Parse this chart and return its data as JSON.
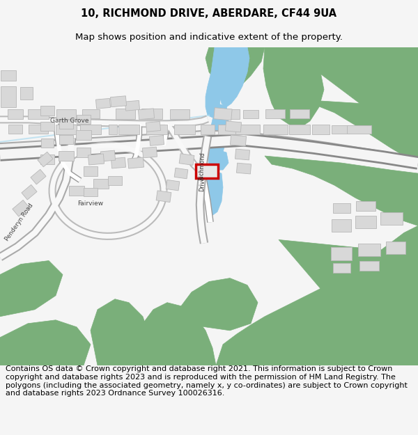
{
  "title_line1": "10, RICHMOND DRIVE, ABERDARE, CF44 9UA",
  "title_line2": "Map shows position and indicative extent of the property.",
  "footer_text": "Contains OS data © Crown copyright and database right 2021. This information is subject to Crown copyright and database rights 2023 and is reproduced with the permission of HM Land Registry. The polygons (including the associated geometry, namely x, y co-ordinates) are subject to Crown copyright and database rights 2023 Ordnance Survey 100026316.",
  "bg_color": "#f5f5f5",
  "map_bg": "#f0eeea",
  "road_color": "#ffffff",
  "road_edge": "#999999",
  "building_color": "#d8d8d8",
  "building_edge": "#b8b8b8",
  "green_color": "#7aaf7a",
  "water_color": "#8ec8e8",
  "water_light": "#b8dff0",
  "highlight_color": "#cc0000",
  "title_fontsize": 10.5,
  "subtitle_fontsize": 9.5,
  "footer_fontsize": 8.0,
  "label_color": "#555555"
}
